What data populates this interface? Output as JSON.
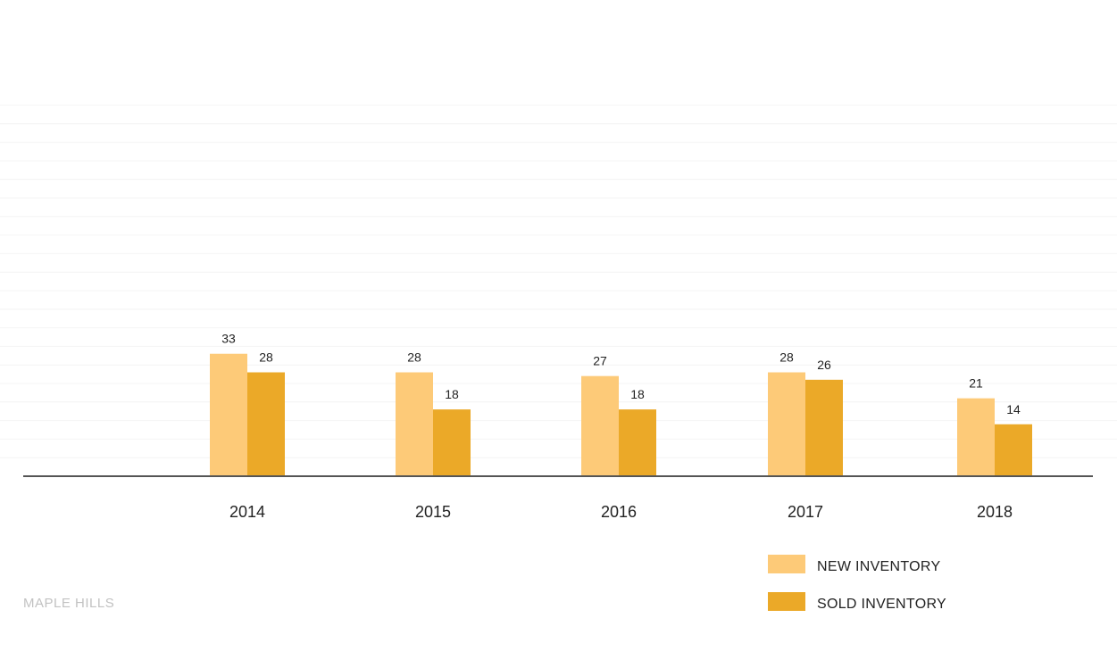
{
  "chart_data": {
    "type": "bar",
    "categories": [
      "2014",
      "2015",
      "2016",
      "2017",
      "2018"
    ],
    "series": [
      {
        "name": "NEW INVENTORY",
        "color": "#fdca78",
        "values": [
          33,
          28,
          27,
          28,
          21
        ]
      },
      {
        "name": "SOLD INVENTORY",
        "color": "#eba928",
        "values": [
          28,
          18,
          18,
          26,
          14
        ]
      }
    ],
    "ylim": [
      0,
      100
    ],
    "grid": true,
    "legend_position": "bottom-right",
    "data_labels": true
  },
  "footer": {
    "label": "MAPLE HILLS"
  },
  "colors": {
    "axis": "#555555",
    "grid": "#f4f4f4",
    "text": "#222222"
  }
}
